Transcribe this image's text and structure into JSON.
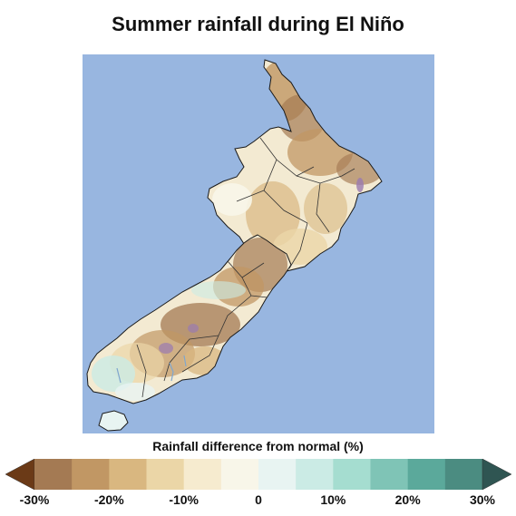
{
  "title": "Summer rainfall during El Niño",
  "legend": {
    "title": "Rainfall difference from normal (%)",
    "ticks": [
      "-30%",
      "-20%",
      "-10%",
      "0",
      "10%",
      "20%",
      "30%"
    ],
    "colors": {
      "under": "#6b3a17",
      "bins": [
        "#a47a53",
        "#c19764",
        "#d9b780",
        "#ebd6a7",
        "#f6ebcf",
        "#f8f6e9",
        "#e8f4f2",
        "#cbebe5",
        "#a5ddd0",
        "#7fc4b6",
        "#5ba99b",
        "#4b8c81"
      ],
      "over": "#2f5552"
    }
  },
  "map": {
    "ocean_color": "#98b6e0",
    "land_base_color": "#f3ead2"
  }
}
